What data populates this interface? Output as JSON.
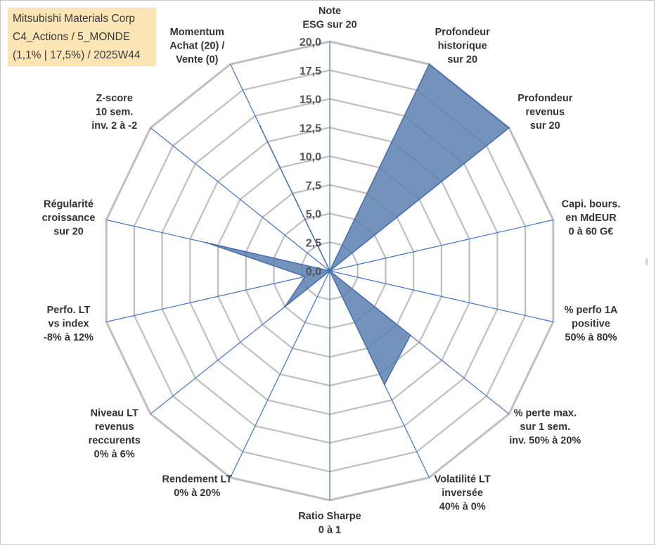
{
  "title_box": {
    "line1": "Mitsubishi Materials Corp",
    "line2": "C4_Actions / 5_MONDE",
    "line3": "(1,1% | 17,5%) / 2025W44"
  },
  "colors": {
    "grid": "#bfbfbf",
    "spoke": "#4472c4",
    "fill": "#5b7fb0",
    "stroke": "#4a6ea9"
  },
  "chart_data": {
    "type": "radar",
    "rmax": 20,
    "ticks": [
      0,
      2.5,
      5,
      7.5,
      10,
      12.5,
      15,
      17.5,
      20
    ],
    "tick_labels": [
      "0,0",
      "2,5",
      "5,0",
      "7,5",
      "10,0",
      "12,5",
      "15,0",
      "17,5",
      "20,0"
    ],
    "categories": [
      [
        "Note",
        "ESG sur 20"
      ],
      [
        "Profondeur",
        "historique",
        "sur 20"
      ],
      [
        "Profondeur",
        "revenus",
        "sur 20"
      ],
      [
        "Capi. bours.",
        "en MdEUR",
        "0 à 60 G€"
      ],
      [
        "% perfo 1A",
        "positive",
        "50% à 80%"
      ],
      [
        "% perte max.",
        "sur 1 sem.",
        "inv. 50% à 20%"
      ],
      [
        "Volatilité LT",
        "inversée",
        "40% à 0%"
      ],
      [
        "Ratio Sharpe",
        "0 à 1"
      ],
      [
        "Rendement LT",
        "0% à 20%"
      ],
      [
        "Niveau LT",
        "revenus",
        "reccurents",
        "0% à 6%"
      ],
      [
        "Perfo. LT",
        "vs index",
        "-8% à 12%"
      ],
      [
        "Régularité",
        "croissance",
        "sur 20"
      ],
      [
        "Z-score",
        "10 sem.",
        "inv. 2 à -2"
      ],
      [
        "Momentum",
        "Achat (20) /",
        "Vente (0)"
      ]
    ],
    "series": [
      {
        "name": "Mitsubishi Materials Corp",
        "values": [
          0,
          20,
          20,
          0,
          0,
          9,
          11,
          0,
          0,
          5,
          2.2,
          11,
          0,
          14
        ]
      }
    ]
  }
}
